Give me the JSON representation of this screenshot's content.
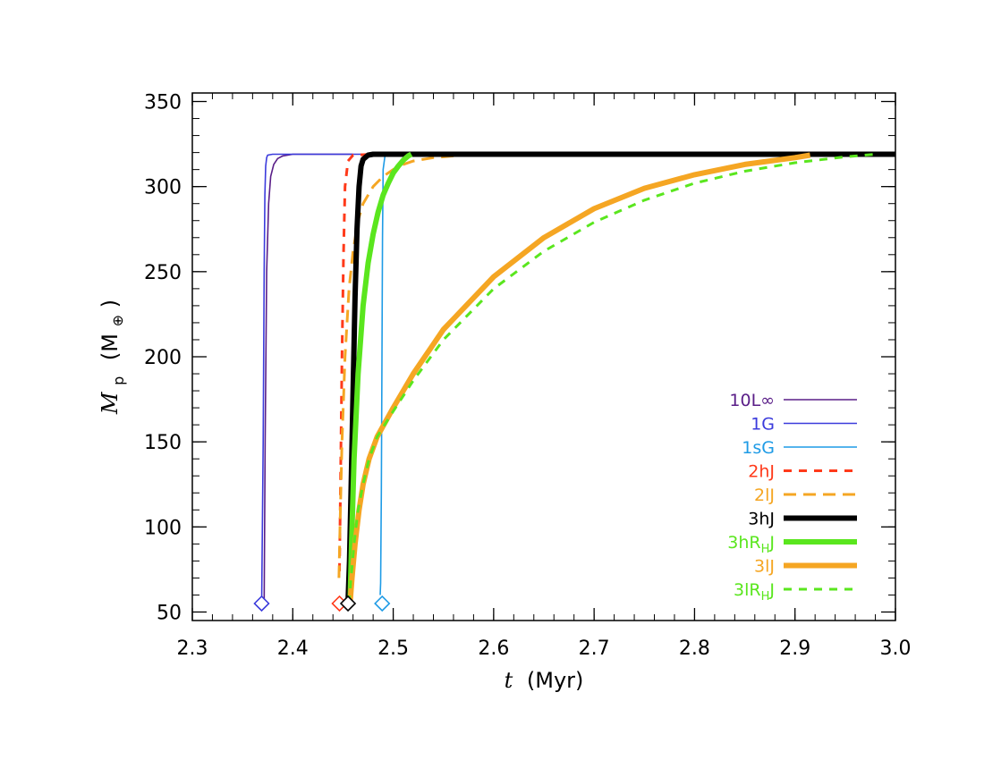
{
  "chart_data": {
    "type": "line",
    "xlabel": "t (Myr)",
    "xlabel_var": "t",
    "xlabel_unit": "(Myr)",
    "ylabel": "M_p (M⊕)",
    "ylabel_var": "M",
    "ylabel_sub": "p",
    "ylabel_unit_open": "(M",
    "ylabel_unit_symbol": "⊕",
    "ylabel_unit_close": ")",
    "xlim": [
      2.3,
      3.0
    ],
    "ylim": [
      45,
      355
    ],
    "x_ticks": [
      2.3,
      2.4,
      2.5,
      2.6,
      2.7,
      2.8,
      2.9,
      3.0
    ],
    "x_tick_labels": [
      "2.3",
      "2.4",
      "2.5",
      "2.6",
      "2.7",
      "2.8",
      "2.9",
      "3.0"
    ],
    "y_ticks": [
      50,
      100,
      150,
      200,
      250,
      300,
      350
    ],
    "y_tick_labels": [
      "50",
      "100",
      "150",
      "200",
      "250",
      "300",
      "350"
    ],
    "grid": false,
    "legend_position": "lower-right",
    "series": [
      {
        "name": "10L∞",
        "legend_main": "10L∞",
        "legend_sub": "",
        "legend_tail": "",
        "color": "#5a1e88",
        "dash": "solid",
        "width": "thin",
        "x": [
          2.3715,
          2.3725,
          2.374,
          2.376,
          2.378,
          2.381,
          2.385,
          2.39,
          2.4,
          2.415,
          2.44,
          2.46
        ],
        "y": [
          55,
          150,
          250,
          290,
          306,
          313,
          316.5,
          318,
          319,
          319,
          319,
          319
        ]
      },
      {
        "name": "1G",
        "legend_main": "1G",
        "legend_sub": "",
        "legend_tail": "",
        "color": "#3b3bdc",
        "dash": "solid",
        "width": "thin",
        "x": [
          2.369,
          2.3705,
          2.3715,
          2.3722,
          2.373,
          2.374,
          2.375,
          2.38,
          2.4,
          2.45,
          2.5
        ],
        "y": [
          55,
          150,
          250,
          295,
          312,
          317,
          318.5,
          319,
          319,
          319,
          319
        ]
      },
      {
        "name": "1sG",
        "legend_main": "1sG",
        "legend_sub": "",
        "legend_tail": "",
        "color": "#1e9be6",
        "dash": "solid",
        "width": "thin",
        "x": [
          2.487,
          2.4875,
          2.4882,
          2.4888,
          2.4893,
          2.49,
          2.492
        ],
        "y": [
          60,
          67,
          120,
          200,
          270,
          310,
          319
        ]
      },
      {
        "name": "2hJ",
        "legend_main": "2hJ",
        "legend_sub": "",
        "legend_tail": "",
        "color": "#ff3a1a",
        "dash": "dash",
        "width": "medium",
        "x": [
          2.4465,
          2.447,
          2.448,
          2.449,
          2.4505,
          2.452,
          2.455,
          2.46,
          2.48,
          2.5
        ],
        "y": [
          74,
          100,
          150,
          200,
          260,
          300,
          315,
          318.5,
          319,
          319
        ]
      },
      {
        "name": "2lJ",
        "legend_main": "2lJ",
        "legend_sub": "",
        "legend_tail": "",
        "color": "#f5a623",
        "dash": "longdash",
        "width": "medium",
        "x": [
          2.446,
          2.447,
          2.449,
          2.452,
          2.456,
          2.46,
          2.465,
          2.47,
          2.48,
          2.49,
          2.5,
          2.51,
          2.52,
          2.54,
          2.56,
          2.6,
          2.7
        ],
        "y": [
          70,
          100,
          150,
          200,
          240,
          262,
          280,
          290,
          300,
          306,
          310,
          313,
          315,
          317,
          318,
          319,
          319
        ]
      },
      {
        "name": "3hJ",
        "legend_main": "3hJ",
        "legend_sub": "",
        "legend_tail": "",
        "color": "#000000",
        "dash": "solid",
        "width": "thick",
        "x": [
          2.455,
          2.4565,
          2.458,
          2.46,
          2.462,
          2.464,
          2.466,
          2.468,
          2.47,
          2.475,
          2.48,
          2.5,
          2.6,
          2.8,
          3.0
        ],
        "y": [
          55,
          80,
          120,
          180,
          235,
          275,
          300,
          312,
          316,
          318.5,
          319,
          319,
          319,
          319,
          319
        ]
      },
      {
        "name": "3hRHJ",
        "legend_main": "3hR",
        "legend_sub": "H",
        "legend_tail": "J",
        "color": "#5ae61e",
        "dash": "solid",
        "width": "thick",
        "x": [
          2.457,
          2.4585,
          2.461,
          2.465,
          2.47,
          2.475,
          2.48,
          2.485,
          2.49,
          2.495,
          2.5,
          2.505,
          2.51,
          2.515,
          2.518
        ],
        "y": [
          55,
          90,
          140,
          190,
          230,
          255,
          272,
          285,
          295,
          302,
          308,
          312,
          315.5,
          318,
          319
        ]
      },
      {
        "name": "3lJ",
        "legend_main": "3lJ",
        "legend_sub": "",
        "legend_tail": "",
        "color": "#f5a623",
        "dash": "solid",
        "width": "thick",
        "x": [
          2.457,
          2.459,
          2.462,
          2.466,
          2.47,
          2.476,
          2.484,
          2.5,
          2.52,
          2.55,
          2.6,
          2.65,
          2.7,
          2.75,
          2.8,
          2.85,
          2.9,
          2.915
        ],
        "y": [
          55,
          70,
          90,
          110,
          125,
          140,
          153,
          170,
          190,
          216,
          247,
          270,
          287,
          299,
          307,
          313,
          317,
          318.5
        ]
      },
      {
        "name": "3lRHJ",
        "legend_main": "3lR",
        "legend_sub": "H",
        "legend_tail": "J",
        "color": "#5ae61e",
        "dash": "dash",
        "width": "medium",
        "x": [
          2.456,
          2.458,
          2.461,
          2.465,
          2.47,
          2.476,
          2.484,
          2.5,
          2.52,
          2.55,
          2.6,
          2.65,
          2.7,
          2.75,
          2.8,
          2.85,
          2.9,
          2.95,
          2.98
        ],
        "y": [
          55,
          70,
          90,
          110,
          125,
          140,
          153,
          168,
          186,
          210,
          240,
          262,
          279,
          292,
          302,
          309,
          314,
          317.5,
          319
        ]
      }
    ],
    "markers": [
      {
        "name": "1G",
        "x": 2.369,
        "y": 55,
        "color": "#3b3bdc"
      },
      {
        "name": "2hJ",
        "x": 2.4465,
        "y": 55,
        "color": "#ff3a1a"
      },
      {
        "name": "3hJ",
        "x": 2.455,
        "y": 55,
        "color": "#000000"
      },
      {
        "name": "1sG",
        "x": 2.489,
        "y": 55,
        "color": "#1e9be6"
      }
    ]
  }
}
